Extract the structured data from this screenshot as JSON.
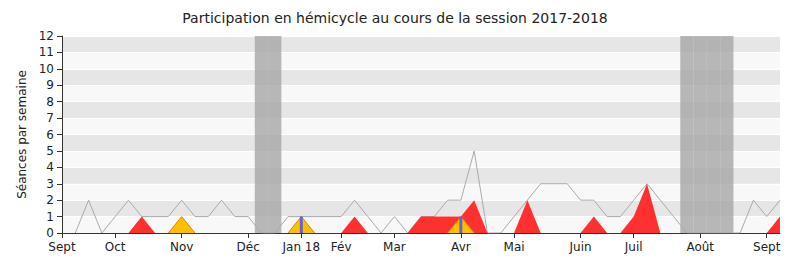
{
  "chart_data": {
    "type": "line",
    "title": "Participation en hémicycle au cours de la session 2017-2018",
    "y_label": "Séances par semaine",
    "categories": [
      "Sept",
      null,
      null,
      null,
      "Oct",
      null,
      null,
      null,
      null,
      "Nov",
      null,
      null,
      null,
      null,
      "Déc",
      null,
      null,
      null,
      "Jan 18",
      null,
      null,
      "Fév",
      null,
      null,
      null,
      "Mar",
      null,
      null,
      null,
      null,
      "Avr",
      null,
      null,
      null,
      "Mai",
      null,
      null,
      null,
      null,
      "Juin",
      null,
      null,
      null,
      "Juil",
      null,
      null,
      null,
      null,
      "Août",
      null,
      null,
      null,
      null,
      "Sept",
      null
    ],
    "series": [
      {
        "type": "line",
        "color": "#aaaaaa",
        "values": [
          null,
          0,
          2,
          0,
          1,
          2,
          1,
          1,
          1,
          2,
          1,
          1,
          2,
          1,
          1,
          0,
          0,
          1,
          1,
          1,
          1,
          1,
          2,
          1,
          0,
          1,
          0,
          1,
          1,
          2,
          2,
          5,
          0,
          0,
          1,
          2,
          3,
          3,
          3,
          2,
          2,
          1,
          1,
          2,
          3,
          2,
          1,
          0,
          0,
          0,
          0,
          0,
          2,
          1,
          2
        ]
      },
      {
        "type": "area",
        "color": "#ff3030",
        "values": [
          0,
          0,
          0,
          0,
          0,
          0,
          1,
          0,
          0,
          0,
          0,
          0,
          0,
          0,
          0,
          0,
          0,
          0,
          0,
          0,
          0,
          0,
          1,
          0,
          0,
          0,
          0,
          1,
          1,
          1,
          1,
          2,
          0,
          0,
          0,
          2,
          0,
          0,
          0,
          0,
          1,
          0,
          0,
          1,
          3,
          0,
          0,
          0,
          0,
          0,
          0,
          0,
          0,
          0,
          1
        ]
      },
      {
        "type": "area",
        "color": "#ffc000",
        "values": [
          null,
          null,
          null,
          null,
          null,
          null,
          null,
          null,
          0,
          1,
          0,
          null,
          null,
          null,
          null,
          null,
          null,
          0,
          1,
          0,
          null,
          null,
          null,
          null,
          null,
          null,
          null,
          null,
          null,
          0,
          1,
          0,
          null,
          null,
          null,
          null,
          null,
          null,
          null,
          null,
          null,
          null,
          null,
          null,
          null,
          null,
          null,
          null,
          null,
          null,
          null,
          null,
          null,
          null,
          null
        ]
      },
      {
        "type": "bar",
        "color": "#6464c8",
        "values": [
          null,
          null,
          null,
          null,
          null,
          null,
          null,
          null,
          null,
          null,
          null,
          null,
          null,
          null,
          null,
          null,
          null,
          null,
          1,
          null,
          null,
          null,
          null,
          null,
          null,
          null,
          null,
          null,
          null,
          null,
          1,
          null,
          null,
          null,
          null,
          null,
          null,
          null,
          null,
          null,
          null,
          null,
          null,
          null,
          null,
          null,
          null,
          null,
          null,
          null,
          null,
          null,
          null,
          null,
          null
        ]
      }
    ],
    "vacation": [
      false,
      false,
      false,
      false,
      false,
      false,
      false,
      false,
      false,
      false,
      false,
      false,
      false,
      false,
      false,
      true,
      true,
      false,
      false,
      false,
      false,
      false,
      false,
      false,
      false,
      false,
      false,
      false,
      false,
      false,
      false,
      false,
      false,
      false,
      false,
      false,
      false,
      false,
      false,
      false,
      false,
      false,
      false,
      false,
      false,
      false,
      false,
      true,
      true,
      true,
      true,
      false,
      false,
      false,
      false
    ],
    "vacation_color": "#a6a6a6",
    "ylim": [
      0,
      12
    ],
    "yticks": [
      0,
      1,
      2,
      3,
      4,
      5,
      6,
      7,
      8,
      9,
      10,
      11,
      12
    ],
    "grid": true
  }
}
